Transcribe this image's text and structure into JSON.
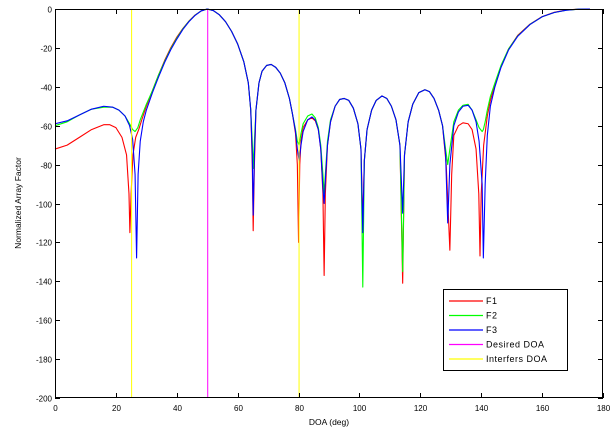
{
  "chart_data": {
    "type": "line",
    "title": "",
    "xlabel": "DOA (deg)",
    "ylabel": "Normalized Array Factor",
    "xlim": [
      0,
      180
    ],
    "ylim": [
      -200,
      0
    ],
    "xticks": [
      0,
      20,
      40,
      60,
      80,
      100,
      120,
      140,
      160,
      180
    ],
    "yticks": [
      0,
      -20,
      -40,
      -60,
      -80,
      -100,
      -120,
      -140,
      -160,
      -180,
      -200
    ],
    "grid": false,
    "legend_position": "bottom-right",
    "series": [
      {
        "name": "F1",
        "color": "#ff0000",
        "x": [
          0,
          4,
          8,
          12,
          16,
          18,
          20,
          22,
          23.5,
          24.3,
          24.6,
          25,
          25.6,
          26.5,
          27.5,
          28.5,
          30,
          32,
          34,
          36,
          38,
          40,
          42,
          44,
          46,
          48,
          50,
          52,
          54,
          56,
          58,
          60,
          62,
          63.5,
          64.3,
          64.8,
          65.1,
          65.5,
          66,
          67,
          68,
          69.5,
          71,
          72.5,
          74,
          75.5,
          77,
          78,
          79,
          79.6,
          80,
          80.4,
          80.8,
          81.5,
          83,
          84.4,
          85.5,
          86.5,
          87.3,
          88,
          88.4,
          88.8,
          89.5,
          90.5,
          92,
          93.5,
          95,
          96.5,
          98,
          99.5,
          100.5,
          101.1,
          101.6,
          102.5,
          104,
          105.5,
          107.4,
          109,
          110.5,
          112,
          113.3,
          114.2,
          114.8,
          116,
          117.5,
          119.5,
          121.5,
          123,
          124.5,
          126,
          127.3,
          128.5,
          129.7,
          130.3,
          131,
          132.5,
          134,
          135.7,
          137,
          138.3,
          139.2,
          139.6,
          140,
          140.8,
          142,
          143,
          144.5,
          146.5,
          149,
          152,
          156,
          160,
          164,
          168,
          172,
          175.7
        ],
        "y": [
          -72,
          -70,
          -66,
          -62,
          -59.5,
          -59.5,
          -61,
          -66,
          -75,
          -95,
          -115,
          -95,
          -75,
          -66,
          -62,
          -57,
          -50,
          -42,
          -34,
          -26.5,
          -20,
          -14.5,
          -10,
          -6.2,
          -3.1,
          -1,
          0,
          -0.8,
          -3,
          -6.5,
          -11.5,
          -18,
          -27,
          -38,
          -52,
          -80,
          -114,
          -80,
          -52,
          -38,
          -32,
          -29,
          -28.5,
          -30,
          -33,
          -38,
          -46,
          -54,
          -64,
          -80,
          -120,
          -80,
          -68,
          -61,
          -57,
          -56,
          -57.5,
          -62,
          -72,
          -95,
          -137,
          -95,
          -70,
          -58,
          -50,
          -46.5,
          -46,
          -47,
          -51,
          -59,
          -72,
          -110,
          -78,
          -62,
          -52,
          -47,
          -44.7,
          -46,
          -50,
          -57,
          -70,
          -141,
          -75,
          -58,
          -49,
          -43,
          -41.5,
          -42.5,
          -46,
          -52,
          -60,
          -80,
          -124,
          -85,
          -65,
          -60,
          -58.5,
          -59,
          -62,
          -72,
          -95,
          -127,
          -95,
          -70,
          -55,
          -47,
          -39,
          -29.5,
          -20.5,
          -13.5,
          -7.8,
          -3.9,
          -1.7,
          -0.5,
          -0.1,
          0
        ]
      },
      {
        "name": "F2",
        "color": "#00ff00",
        "x": [
          0,
          4,
          8,
          12,
          16,
          19,
          21,
          23,
          24.5,
          25.5,
          26.3,
          27.2,
          28,
          29,
          30,
          32,
          34,
          36,
          38,
          40,
          42,
          44,
          46,
          48,
          50,
          52,
          54,
          56,
          58,
          60,
          62,
          63.5,
          64.3,
          64.8,
          65.1,
          65.5,
          66,
          67,
          68,
          69.5,
          71,
          72.5,
          74,
          75.5,
          77,
          78,
          79,
          79.6,
          80.2,
          80.8,
          81.5,
          83,
          84.4,
          85.5,
          86.5,
          87.3,
          88,
          88.4,
          88.8,
          89.5,
          90.5,
          92,
          93.5,
          95,
          96.5,
          98,
          99.5,
          100.5,
          101.1,
          101.6,
          102.5,
          104,
          105.5,
          107.4,
          109,
          110.5,
          112,
          113.3,
          114.2,
          114.8,
          116,
          117.5,
          119.5,
          121.5,
          123,
          124.5,
          126,
          127.3,
          128.3,
          129,
          129.7,
          131,
          132.5,
          134,
          135.7,
          137,
          138.3,
          139.3,
          140.3,
          140.7,
          141.3,
          142,
          143,
          144.5,
          146.5,
          149,
          152,
          156,
          160,
          164,
          168,
          172,
          175.7
        ],
        "y": [
          -60,
          -58,
          -54.5,
          -51.5,
          -50.5,
          -50.5,
          -52,
          -55,
          -59,
          -62,
          -63,
          -61,
          -57,
          -53,
          -49,
          -42,
          -34,
          -27,
          -20.5,
          -15,
          -10.2,
          -6.3,
          -3.2,
          -1,
          0,
          -0.8,
          -3,
          -6.5,
          -11.5,
          -18,
          -27,
          -38,
          -52,
          -68,
          -82,
          -68,
          -52,
          -38,
          -32,
          -29,
          -28.5,
          -30,
          -33,
          -38,
          -46,
          -54,
          -62,
          -68,
          -70,
          -64,
          -59,
          -55,
          -54,
          -56,
          -61,
          -70,
          -85,
          -95,
          -85,
          -68,
          -57,
          -50,
          -46.5,
          -46,
          -47,
          -51,
          -59,
          -72,
          -143,
          -78,
          -62,
          -52,
          -47,
          -44.7,
          -46,
          -50,
          -57,
          -70,
          -135,
          -75,
          -58,
          -49,
          -43,
          -41.5,
          -42.5,
          -46,
          -52,
          -60,
          -72,
          -80,
          -72,
          -58,
          -52,
          -49.5,
          -49,
          -52,
          -57,
          -61,
          -63,
          -62,
          -58,
          -52,
          -45,
          -38,
          -29,
          -20.5,
          -13.8,
          -7.9,
          -4,
          -1.8,
          -0.6,
          -0.1,
          0
        ]
      },
      {
        "name": "F3",
        "color": "#0000ff",
        "x": [
          0,
          4,
          8,
          12,
          16,
          19,
          21,
          23,
          24.5,
          25.5,
          26.3,
          26.8,
          27.3,
          28,
          29,
          30,
          32,
          34,
          36,
          38,
          40,
          42,
          44,
          46,
          48,
          50,
          52,
          54,
          56,
          58,
          60,
          62,
          63.5,
          64.3,
          64.8,
          65.1,
          65.5,
          66,
          67,
          68,
          69.5,
          71,
          72.5,
          74,
          75.5,
          77,
          78,
          79,
          79.6,
          80.2,
          80.8,
          81.5,
          83,
          84.4,
          85.5,
          86.5,
          87.3,
          88,
          88.4,
          88.8,
          89.5,
          90.5,
          92,
          93.5,
          95,
          96.5,
          98,
          99.5,
          100.5,
          101.1,
          101.6,
          102.5,
          104,
          105.5,
          107.4,
          109,
          110.5,
          112,
          113.3,
          114.2,
          114.8,
          116,
          117.5,
          119.5,
          121.5,
          123,
          124.5,
          126,
          127.3,
          128.3,
          129,
          129.7,
          131,
          132.5,
          134,
          135.7,
          137,
          138.3,
          139.3,
          140.3,
          140.7,
          141.3,
          142,
          143,
          144.5,
          146.5,
          149,
          152,
          156,
          160,
          164,
          168,
          172,
          175.7
        ],
        "y": [
          -59,
          -57.5,
          -54.5,
          -51.5,
          -50,
          -50.5,
          -52,
          -55,
          -60,
          -67,
          -85,
          -128,
          -85,
          -68,
          -58,
          -52,
          -43,
          -35,
          -27.5,
          -21,
          -15.5,
          -10.5,
          -6.5,
          -3.3,
          -1,
          0,
          -0.8,
          -3,
          -6.5,
          -11.5,
          -18,
          -27,
          -38,
          -52,
          -75,
          -106,
          -75,
          -52,
          -38,
          -32,
          -29,
          -28.5,
          -30,
          -33,
          -38,
          -46,
          -54,
          -63,
          -72,
          -78,
          -70,
          -63,
          -57,
          -55.5,
          -57,
          -62,
          -72,
          -92,
          -100,
          -88,
          -70,
          -58,
          -50,
          -46.5,
          -46,
          -47,
          -51,
          -59,
          -72,
          -115,
          -78,
          -62,
          -52,
          -47,
          -44.7,
          -46,
          -50,
          -57,
          -70,
          -105,
          -75,
          -58,
          -49,
          -43,
          -41.5,
          -42.5,
          -46,
          -52,
          -60,
          -75,
          -110,
          -80,
          -60,
          -53,
          -50,
          -49.5,
          -52,
          -58,
          -68,
          -90,
          -128,
          -90,
          -65,
          -50,
          -40,
          -30,
          -21,
          -14,
          -8,
          -4,
          -1.8,
          -0.6,
          -0.1,
          0
        ]
      }
    ],
    "reference_lines": [
      {
        "name": "Desired DOA",
        "color": "#ff00ff",
        "x": [
          50
        ]
      },
      {
        "name": "Interfers DOA",
        "color": "#ffff00",
        "x": [
          25,
          80
        ]
      }
    ]
  }
}
